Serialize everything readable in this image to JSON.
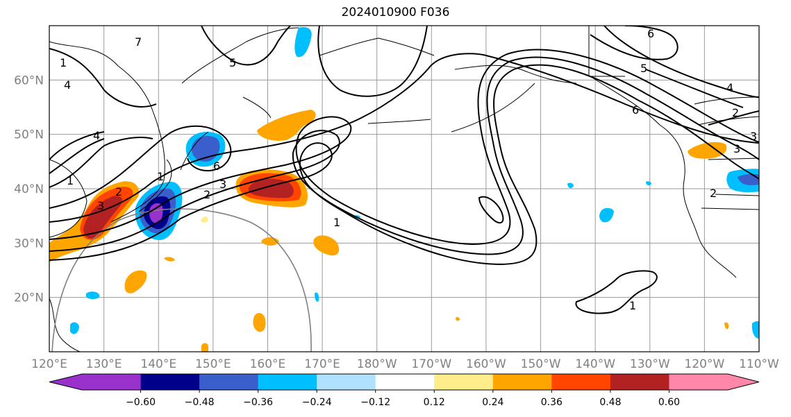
{
  "title": "2024010900 F036",
  "map": {
    "lat_labels": [
      "60°N",
      "50°N",
      "40°N",
      "30°N",
      "20°N"
    ],
    "lon_labels": [
      "120°E",
      "130°E",
      "140°E",
      "150°E",
      "160°E",
      "170°E",
      "180°W",
      "170°W",
      "160°W",
      "150°W",
      "140°W",
      "130°W",
      "120°W",
      "110°W"
    ],
    "extent": {
      "lon_min": 120,
      "lon_max": 250,
      "lat_min": 10,
      "lat_max": 70
    },
    "contour_labels": [
      "1",
      "2",
      "3",
      "4",
      "5",
      "6",
      "7",
      "1",
      "2",
      "3",
      "4",
      "5",
      "6",
      "1",
      "2",
      "3",
      "1",
      "1",
      "6",
      "2",
      "3",
      "4"
    ]
  },
  "colorbar": {
    "ticks": [
      "−0.60",
      "−0.48",
      "−0.36",
      "−0.24",
      "−0.12",
      "0.12",
      "0.24",
      "0.36",
      "0.48",
      "0.60"
    ],
    "colors": [
      "#9932cc",
      "#00008b",
      "#3a5fcd",
      "#00bfff",
      "#b0e2ff",
      "#ffffff",
      "#ffec8b",
      "#ffa500",
      "#ff4500",
      "#b22222",
      "#ff88aa"
    ]
  }
}
